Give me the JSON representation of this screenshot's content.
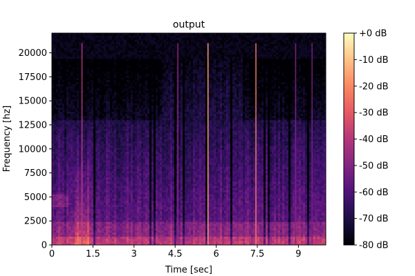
{
  "chart_data": {
    "type": "heatmap",
    "title": "output",
    "xlabel": "Time [sec]",
    "ylabel": "Frequency [hz]",
    "xlim": [
      0,
      10
    ],
    "ylim": [
      0,
      22050
    ],
    "x_ticks": [
      0,
      1.5,
      3,
      4.5,
      6,
      7.5,
      9
    ],
    "x_tick_labels": [
      "0",
      "1.5",
      "3",
      "4.5",
      "6",
      "7.5",
      "9"
    ],
    "y_ticks": [
      0,
      2500,
      5000,
      7500,
      10000,
      12500,
      15000,
      17500,
      20000
    ],
    "y_tick_labels": [
      "0",
      "2500",
      "5000",
      "7500",
      "10000",
      "12500",
      "15000",
      "17500",
      "20000"
    ],
    "colorbar": {
      "colormap": "magma",
      "range_db": [
        -80,
        0
      ],
      "ticks": [
        0,
        -10,
        -20,
        -30,
        -40,
        -50,
        -60,
        -70,
        -80
      ],
      "tick_labels": [
        "+0 dB",
        "-10 dB",
        "-20 dB",
        "-30 dB",
        "-40 dB",
        "-50 dB",
        "-60 dB",
        "-70 dB",
        "-80 dB"
      ]
    },
    "spectral_lines": [
      {
        "time": 5.7,
        "level_db": -15
      },
      {
        "time": 7.45,
        "level_db": -22
      },
      {
        "time": 1.1,
        "level_db": -40
      },
      {
        "time": 4.6,
        "level_db": -48
      },
      {
        "time": 8.9,
        "level_db": -50
      },
      {
        "time": 9.5,
        "level_db": -52
      }
    ],
    "colors": {
      "cmap_stops": [
        "#000004",
        "#1c1044",
        "#4f127b",
        "#812581",
        "#b5367a",
        "#e55964",
        "#fb8761",
        "#fec287",
        "#fcfdbf"
      ]
    }
  }
}
